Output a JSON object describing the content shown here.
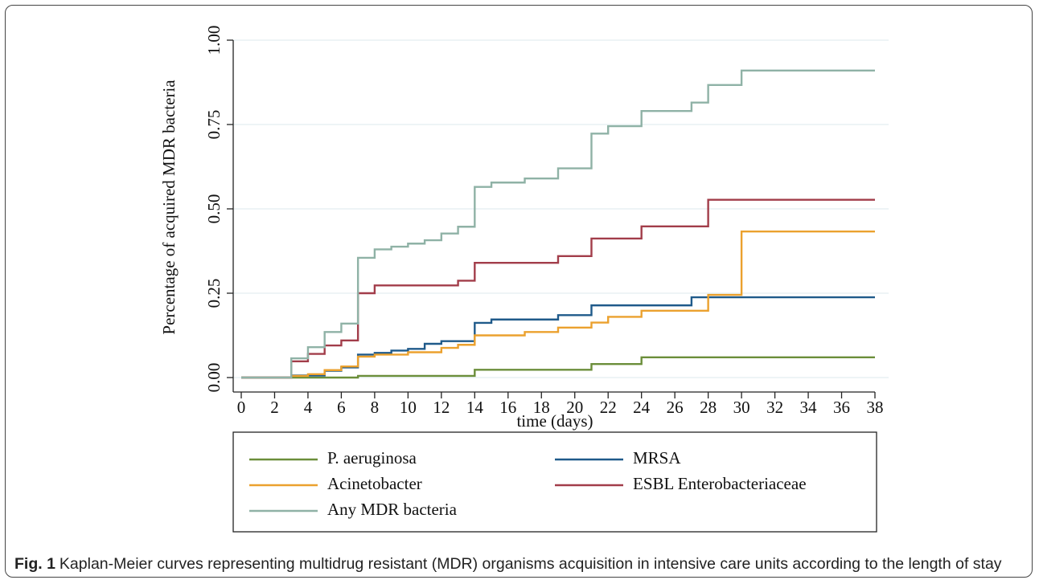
{
  "chart_data": {
    "type": "step",
    "x_label": "time (days)",
    "y_label": "Percentage of acquired MDR bacteria",
    "xlim": [
      0,
      38
    ],
    "xticks": [
      0,
      2,
      4,
      6,
      8,
      10,
      12,
      14,
      16,
      18,
      20,
      22,
      24,
      26,
      28,
      30,
      32,
      34,
      36,
      38
    ],
    "ylim": [
      0,
      1
    ],
    "yticks": [
      {
        "value": 0,
        "label": "0.00"
      },
      {
        "value": 0.25,
        "label": "0.25"
      },
      {
        "value": 0.5,
        "label": "0.50"
      },
      {
        "value": 0.75,
        "label": "0.75"
      },
      {
        "value": 1,
        "label": "1.00"
      }
    ],
    "grid": true,
    "legend": "bottom",
    "series": [
      {
        "name": "P. aeruginosa",
        "color": "#6b8e3a",
        "x": [
          0,
          7,
          14,
          21,
          24,
          38
        ],
        "values": [
          0,
          0.005,
          0.023,
          0.04,
          0.06,
          0.06
        ]
      },
      {
        "name": "MRSA",
        "color": "#1f5a8a",
        "x": [
          0,
          3,
          5,
          6,
          7,
          8,
          9,
          10,
          11,
          12,
          14,
          15,
          19,
          21,
          27,
          38
        ],
        "values": [
          0,
          0.006,
          0.02,
          0.03,
          0.068,
          0.073,
          0.08,
          0.085,
          0.1,
          0.108,
          0.162,
          0.172,
          0.185,
          0.214,
          0.238,
          0.238
        ]
      },
      {
        "name": "Acinetobacter",
        "color": "#eba12e",
        "x": [
          0,
          3,
          4,
          5,
          6,
          7,
          8,
          10,
          12,
          13,
          14,
          17,
          19,
          21,
          22,
          24,
          28,
          30,
          38
        ],
        "values": [
          0,
          0.005,
          0.01,
          0.022,
          0.033,
          0.062,
          0.068,
          0.075,
          0.088,
          0.097,
          0.125,
          0.135,
          0.148,
          0.163,
          0.18,
          0.198,
          0.245,
          0.433,
          0.433
        ]
      },
      {
        "name": "ESBL Enterobacteriaceae",
        "color": "#a23d4a",
        "x": [
          0,
          3,
          4,
          5,
          6,
          7,
          8,
          13,
          14,
          19,
          21,
          24,
          28,
          38
        ],
        "values": [
          0,
          0.048,
          0.07,
          0.095,
          0.11,
          0.25,
          0.273,
          0.287,
          0.34,
          0.36,
          0.412,
          0.448,
          0.527,
          0.527
        ]
      },
      {
        "name": "Any MDR bacteria",
        "color": "#8fb2a6",
        "x": [
          0,
          3,
          4,
          5,
          6,
          7,
          8,
          9,
          10,
          11,
          12,
          13,
          14,
          15,
          17,
          19,
          21,
          22,
          24,
          27,
          28,
          30,
          38
        ],
        "values": [
          0,
          0.057,
          0.09,
          0.135,
          0.16,
          0.355,
          0.38,
          0.388,
          0.397,
          0.407,
          0.427,
          0.447,
          0.565,
          0.578,
          0.59,
          0.62,
          0.723,
          0.745,
          0.79,
          0.815,
          0.867,
          0.91,
          0.91
        ]
      }
    ],
    "caption_label": "Fig. 1",
    "caption": "Kaplan-Meier curves representing multidrug resistant (MDR) organisms acquisition in intensive care units according to the length of stay"
  }
}
